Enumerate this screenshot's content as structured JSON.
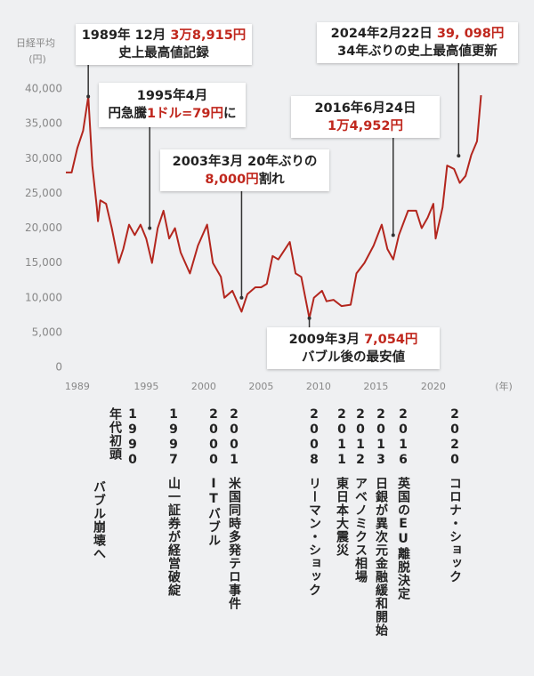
{
  "chart_data": {
    "type": "line",
    "y_label": "日経平均",
    "y_unit": "(円)",
    "x_unit": "(年)",
    "color": "#b3261e",
    "highlight_color": "#c0271d",
    "xlim": [
      1988,
      2024.5
    ],
    "xticks": [
      1989,
      1995,
      2000,
      2005,
      2010,
      2015,
      2020
    ],
    "ylim": [
      0,
      40000
    ],
    "yticks": [
      0,
      {
        "value": 5000,
        "label": "5,000"
      },
      {
        "value": 10000,
        "label": "10,000"
      },
      {
        "value": 15000,
        "label": "15,000"
      },
      {
        "value": 20000,
        "label": "20,000"
      },
      {
        "value": 25000,
        "label": "25,000"
      },
      {
        "value": 30000,
        "label": "30,000"
      },
      {
        "value": 35000,
        "label": "35,000"
      },
      {
        "value": 40000,
        "label": "40,000"
      }
    ],
    "x": [
      1988.0,
      1988.5,
      1989.0,
      1989.5,
      1989.95,
      1990.3,
      1990.7,
      1990.8,
      1991.0,
      1991.5,
      1992.0,
      1992.6,
      1993.0,
      1993.5,
      1994.0,
      1994.5,
      1995.0,
      1995.5,
      1996.0,
      1996.5,
      1997.0,
      1997.5,
      1998.0,
      1998.8,
      1999.5,
      2000.3,
      2000.8,
      2001.5,
      2001.8,
      2002.5,
      2003.3,
      2003.8,
      2004.5,
      2005.0,
      2005.5,
      2006.0,
      2006.5,
      2007.5,
      2008.0,
      2008.5,
      2009.2,
      2009.6,
      2010.3,
      2010.7,
      2011.3,
      2012.0,
      2012.8,
      2013.3,
      2014.0,
      2014.8,
      2015.5,
      2016.0,
      2016.5,
      2017.0,
      2017.8,
      2018.5,
      2018.98,
      2019.5,
      2020.0,
      2020.2,
      2020.8,
      2021.2,
      2021.8,
      2022.3,
      2022.8,
      2023.3,
      2023.8,
      2024.15
    ],
    "values": [
      28000,
      28000,
      31500,
      34000,
      38915,
      29000,
      23000,
      21000,
      24000,
      23500,
      20000,
      15000,
      17000,
      20500,
      19000,
      20500,
      18500,
      15000,
      20000,
      22500,
      18500,
      20000,
      16500,
      13500,
      17500,
      20500,
      15000,
      13000,
      10000,
      11000,
      8000,
      10500,
      11500,
      11500,
      12000,
      16000,
      15500,
      18000,
      13500,
      13000,
      7054,
      10000,
      11000,
      9500,
      9700,
      8800,
      9000,
      13500,
      15000,
      17500,
      20500,
      17000,
      15500,
      19000,
      22500,
      22500,
      20000,
      21500,
      23500,
      18500,
      23000,
      29000,
      28500,
      26500,
      27500,
      30500,
      32500,
      39098
    ],
    "annotations": [
      {
        "x": 1989.95,
        "y": 38915,
        "lines": [
          [
            {
              "text": "1989年 12月 "
            },
            {
              "text": "3万8,915円",
              "color": "#c0271d"
            }
          ],
          [
            {
              "text": "史上最高値記録"
            }
          ]
        ]
      },
      {
        "x": 1995.3,
        "y": 20000,
        "lines": [
          [
            {
              "text": "1995年4月"
            }
          ],
          [
            {
              "text": "円急騰"
            },
            {
              "text": "1ドル=79円",
              "color": "#c0271d"
            },
            {
              "text": "に"
            }
          ]
        ]
      },
      {
        "x": 2003.3,
        "y": 10000,
        "lines": [
          [
            {
              "text": "2003年3月 20年ぶりの"
            }
          ],
          [
            {
              "text": "8,000円",
              "color": "#c0271d"
            },
            {
              "text": "割れ"
            }
          ]
        ]
      },
      {
        "x": 2009.2,
        "y": 7054,
        "lines": [
          [
            {
              "text": "2009年3月 "
            },
            {
              "text": "7,054円",
              "color": "#c0271d"
            }
          ],
          [
            {
              "text": "バブル後の最安値"
            }
          ]
        ]
      },
      {
        "x": 2016.5,
        "y": 19000,
        "lines": [
          [
            {
              "text": "2016年6月24日"
            }
          ],
          [
            {
              "text": "1万4,952円",
              "color": "#c0271d"
            }
          ]
        ]
      },
      {
        "x": 2022.2,
        "y": 30400,
        "lines": [
          [
            {
              "text": "2024年2月22日 "
            },
            {
              "text": "39, 098円",
              "color": "#c0271d"
            }
          ],
          [
            {
              "text": "34年ぶりの史上最高値更新"
            }
          ]
        ]
      }
    ],
    "events": [
      {
        "year": "1990年代初頭",
        "label": "バブル崩壊へ"
      },
      {
        "year": "1997",
        "label": "山一証券が経営破綻"
      },
      {
        "year": "2000",
        "label": "ITバブル"
      },
      {
        "year": "2001",
        "label": "米国同時多発テロ事件"
      },
      {
        "year": "2008",
        "label": "リーマン・ショック"
      },
      {
        "year": "2011",
        "label": "東日本大震災"
      },
      {
        "year": "2012",
        "label": "アベノミクス相場"
      },
      {
        "year": "2013",
        "label": "日銀が異次元金融緩和開始"
      },
      {
        "year": "2016",
        "label": "英国のEU離脱決定"
      },
      {
        "year": "2020",
        "label": "コロナ・ショック"
      }
    ]
  }
}
